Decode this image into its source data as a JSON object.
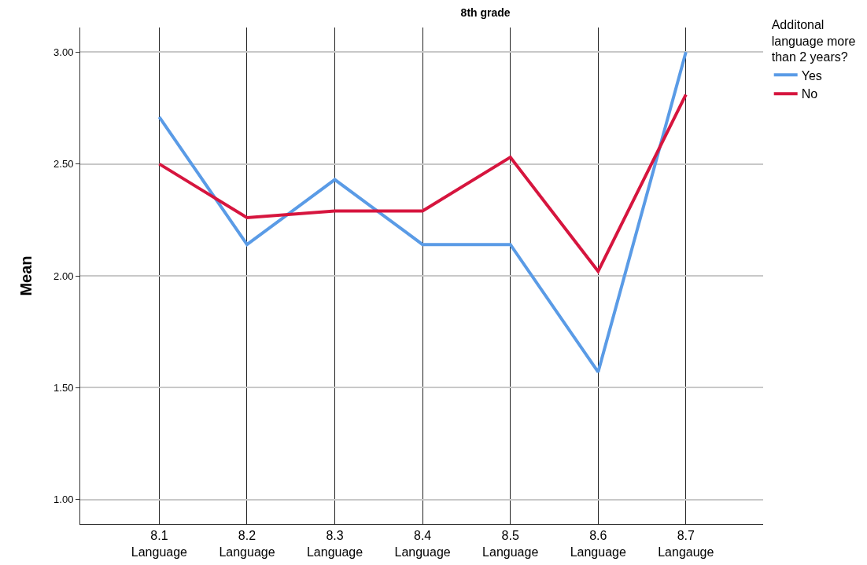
{
  "chart_data": {
    "type": "line",
    "title": "8th grade",
    "ylabel": "Mean",
    "legend_title": "Additonal language more than 2 years?",
    "categories": [
      "8.1 Language",
      "8.2 Language",
      "8.3 Language",
      "8.4 Language",
      "8.5 Language",
      "8.6 Language",
      "8.7 Langauge"
    ],
    "series": [
      {
        "name": "Yes",
        "color": "#5a9be6",
        "values": [
          2.71,
          2.14,
          2.43,
          2.14,
          2.14,
          1.57,
          3.0
        ]
      },
      {
        "name": "No",
        "color": "#d6153e",
        "values": [
          2.5,
          2.26,
          2.29,
          2.29,
          2.53,
          2.02,
          2.81
        ]
      }
    ],
    "ylim": [
      0.89,
      3.11
    ],
    "yticks": [
      {
        "value": 1,
        "label": "1.00"
      },
      {
        "value": 1.5,
        "label": "1.50"
      },
      {
        "value": 2,
        "label": "2.00"
      },
      {
        "value": 2.5,
        "label": "2.50"
      },
      {
        "value": 3,
        "label": "3.00"
      }
    ],
    "grid": true,
    "legend": "top right",
    "marker": "none",
    "line_style": "solid"
  }
}
